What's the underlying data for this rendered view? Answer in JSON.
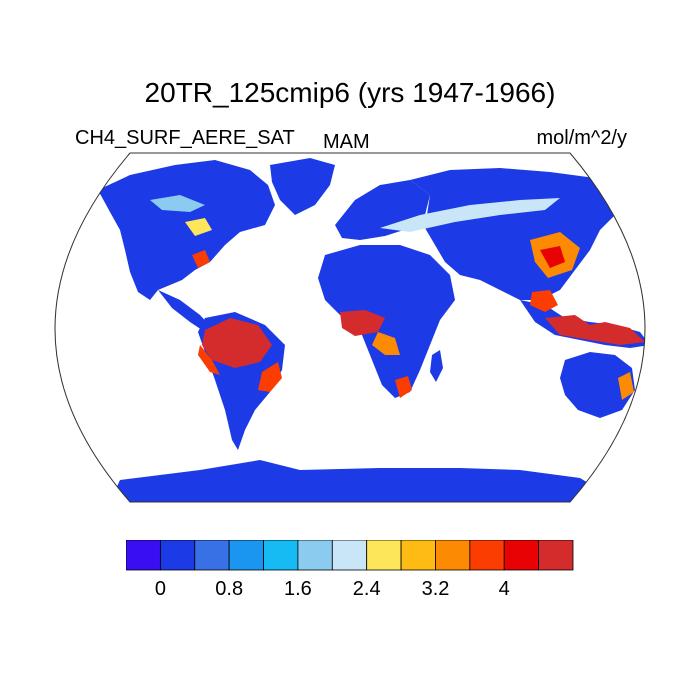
{
  "title": "20TR_125cmip6 (yrs 1947-1966)",
  "variable": "CH4_SURF_AERE_SAT",
  "season": "MAM",
  "units": "mol/m^2/y",
  "colorbar": {
    "colors": [
      "#3a0ef2",
      "#1c3ae6",
      "#3870e6",
      "#1a96f0",
      "#15bbf2",
      "#8ccbf0",
      "#c9e6f8",
      "#fde65a",
      "#fdbb14",
      "#fd8a03",
      "#fc3d02",
      "#e80204",
      "#d42c2c"
    ],
    "tick_labels": [
      "0",
      "0.8",
      "1.6",
      "2.4",
      "3.2",
      "4"
    ]
  },
  "palette": {
    "ocean": "#ffffff",
    "land_base": "#1c3ae6",
    "outline": "#333333"
  }
}
